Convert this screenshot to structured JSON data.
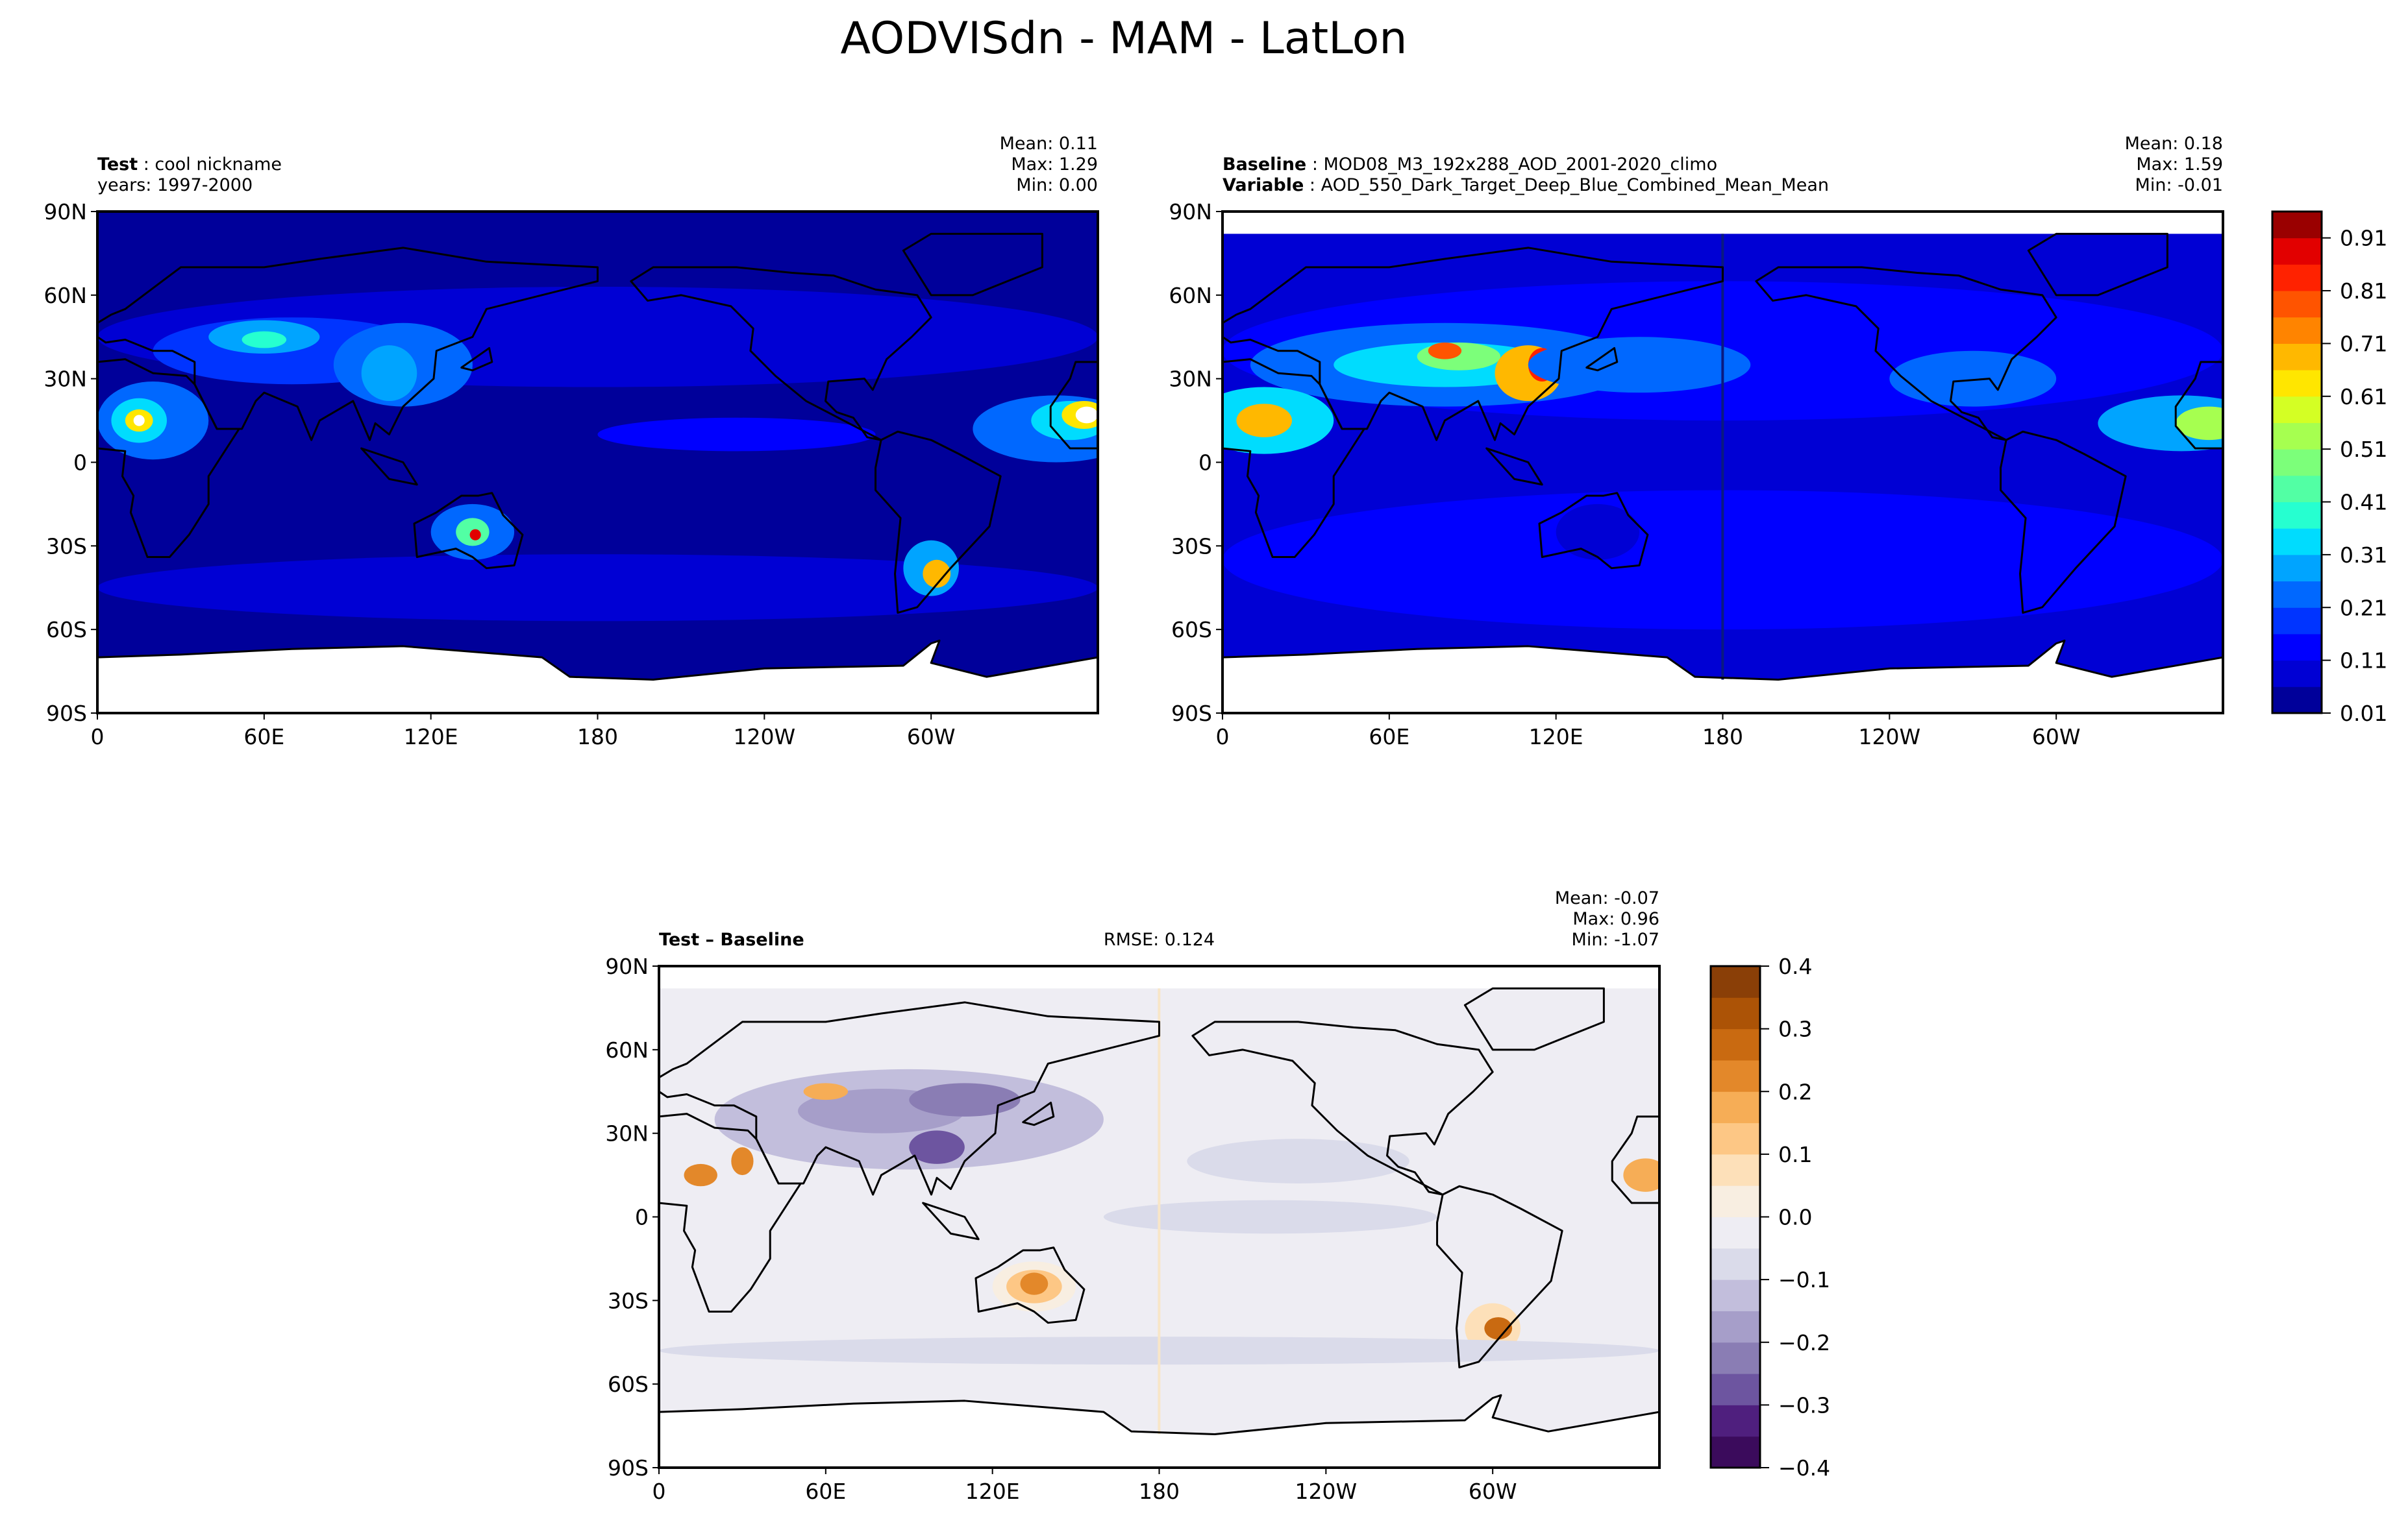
{
  "chart_data": {
    "type": "heatmap",
    "title": "AODVISdn - MAM - LatLon",
    "panels": [
      {
        "id": "test",
        "label_bold": "Test",
        "label_text": "cool nickname",
        "line2": "years: 1997-2000",
        "stats": [
          "Mean:  0.11",
          "Max:  1.29",
          "Min:  0.00"
        ],
        "colormap": "jet",
        "colorbar": "shared-top"
      },
      {
        "id": "baseline",
        "label_bold": "Baseline",
        "label_text": "MOD08_M3_192x288_AOD_2001-2020_climo",
        "line2_bold": "Variable",
        "line2_text": "AOD_550_Dark_Target_Deep_Blue_Combined_Mean_Mean",
        "stats": [
          "Mean:  0.18",
          "Max:  1.59",
          "Min: -0.01"
        ],
        "colormap": "jet",
        "colorbar": "shared-top"
      },
      {
        "id": "diff",
        "label_bold": "Test – Baseline",
        "rmse": "RMSE: 0.124",
        "stats": [
          "Mean: -0.07",
          "Max:  0.96",
          "Min: -1.07"
        ],
        "colormap": "PuOr_r",
        "colorbar": "diff"
      }
    ],
    "x_ticks": [
      "0",
      "60E",
      "120E",
      "180",
      "120W",
      "60W"
    ],
    "x_tick_lons": [
      0,
      60,
      120,
      180,
      240,
      300
    ],
    "y_ticks": [
      "90N",
      "60N",
      "30N",
      "0",
      "30S",
      "60S",
      "90S"
    ],
    "y_tick_lats": [
      90,
      60,
      30,
      0,
      -30,
      -60,
      -90
    ],
    "xlim": [
      0,
      360
    ],
    "ylim": [
      -90,
      90
    ],
    "colorbar_top": {
      "range": [
        0.01,
        0.96
      ],
      "step": 0.05,
      "tick_labels": [
        "0.01",
        "0.11",
        "0.21",
        "0.31",
        "0.41",
        "0.51",
        "0.61",
        "0.71",
        "0.81",
        "0.91"
      ],
      "tick_values": [
        0.01,
        0.11,
        0.21,
        0.31,
        0.41,
        0.51,
        0.61,
        0.71,
        0.81,
        0.91
      ],
      "colors": [
        "#00009a",
        "#0000d4",
        "#0000ff",
        "#0034ff",
        "#0068ff",
        "#00a4ff",
        "#00dcfe",
        "#26ffd0",
        "#52ffa4",
        "#7cff7a",
        "#a6ff50",
        "#d4ff24",
        "#ffe600",
        "#ffb800",
        "#ff8400",
        "#ff5400",
        "#ff2200",
        "#e20000",
        "#9a0000"
      ]
    },
    "colorbar_diff": {
      "range": [
        -0.4,
        0.4
      ],
      "step": 0.05,
      "tick_labels": [
        "−0.4",
        "−0.3",
        "−0.2",
        "−0.1",
        "0.0",
        "0.1",
        "0.2",
        "0.3",
        "0.4"
      ],
      "tick_values": [
        -0.4,
        -0.3,
        -0.2,
        -0.1,
        0.0,
        0.1,
        0.2,
        0.3,
        0.4
      ],
      "colors": [
        "#3b0b5c",
        "#4f1f7e",
        "#6d55a0",
        "#8a7db4",
        "#a69ec9",
        "#c2bedc",
        "#dadbea",
        "#eeedf3",
        "#f8eee1",
        "#fde0b9",
        "#fdc785",
        "#f6ad56",
        "#e3882a",
        "#c96a11",
        "#ac5306",
        "#8a3f07"
      ]
    }
  }
}
